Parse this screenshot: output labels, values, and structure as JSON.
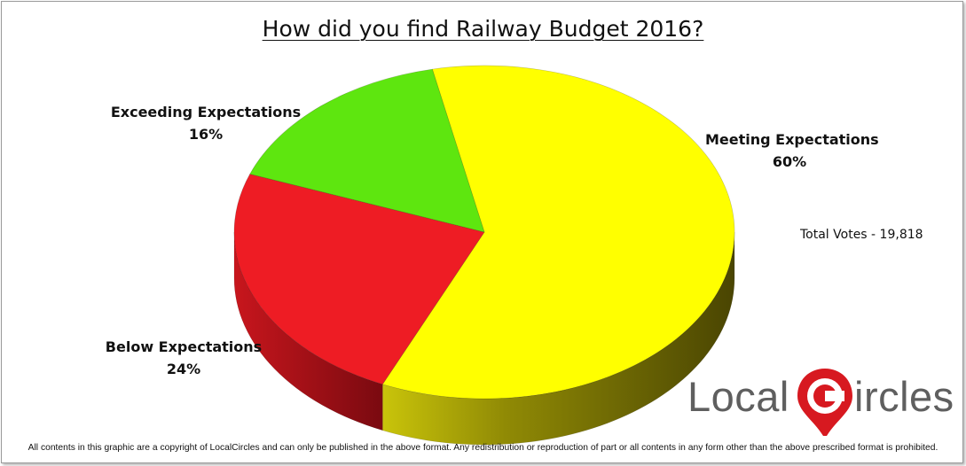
{
  "chart_data": {
    "type": "pie",
    "title": "How did you find Railway Budget 2016?",
    "categories": [
      "Meeting Expectations",
      "Below Expectations",
      "Exceeding Expectations"
    ],
    "values": [
      60,
      24,
      16
    ],
    "value_labels": [
      "60%",
      "24%",
      "16%"
    ],
    "colors": [
      "#ffff00",
      "#ee1c24",
      "#5ee60f"
    ],
    "style": "3d"
  },
  "annotations": {
    "total_votes": "Total Votes - 19,818"
  },
  "logo": {
    "text_left": "Local",
    "text_right": "ircles",
    "pin_letter": "C"
  },
  "footer": {
    "copyright": "All contents in this graphic are a copyright of LocalCircles and can only be published in the above format. Any redistribution or reproduction of part or all contents in any form other than the above prescribed format is prohibited."
  }
}
